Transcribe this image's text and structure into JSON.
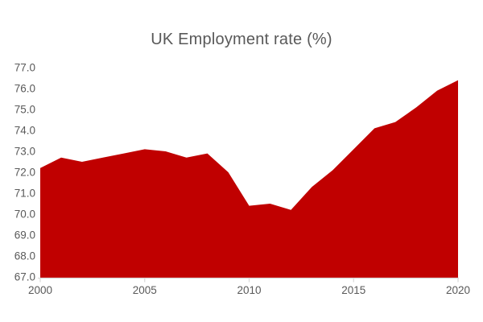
{
  "chart_data": {
    "type": "area",
    "title": "UK Employment rate (%)",
    "series_name": "UK Employment rate (%)",
    "x": [
      2000,
      2001,
      2002,
      2003,
      2004,
      2005,
      2006,
      2007,
      2008,
      2009,
      2010,
      2011,
      2012,
      2013,
      2014,
      2015,
      2016,
      2017,
      2018,
      2019,
      2020
    ],
    "values": [
      72.2,
      72.7,
      72.5,
      72.7,
      72.9,
      73.1,
      73.0,
      72.7,
      72.9,
      72.0,
      70.4,
      70.5,
      70.2,
      71.3,
      72.1,
      73.1,
      74.1,
      74.4,
      75.1,
      75.9,
      76.4
    ],
    "xlim": [
      2000,
      2020
    ],
    "ylim": [
      67,
      77
    ],
    "ytick_values": [
      77,
      76,
      75,
      74,
      73,
      72,
      71,
      70,
      69,
      68,
      67
    ],
    "ytick_labels": [
      "77.0",
      "76.0",
      "75.0",
      "74.0",
      "73.0",
      "72.0",
      "71.0",
      "70.0",
      "69.0",
      "68.0",
      "67.0"
    ],
    "xtick_values": [
      2000,
      2005,
      2010,
      2015,
      2020
    ],
    "xtick_labels": [
      "2000",
      "2005",
      "2010",
      "2015",
      "2020"
    ],
    "grid": false,
    "legend": "none",
    "colors": {
      "fill": "#C00000",
      "text": "#595959",
      "axis": "#D9D9D9",
      "background": "#FFFFFF"
    }
  }
}
